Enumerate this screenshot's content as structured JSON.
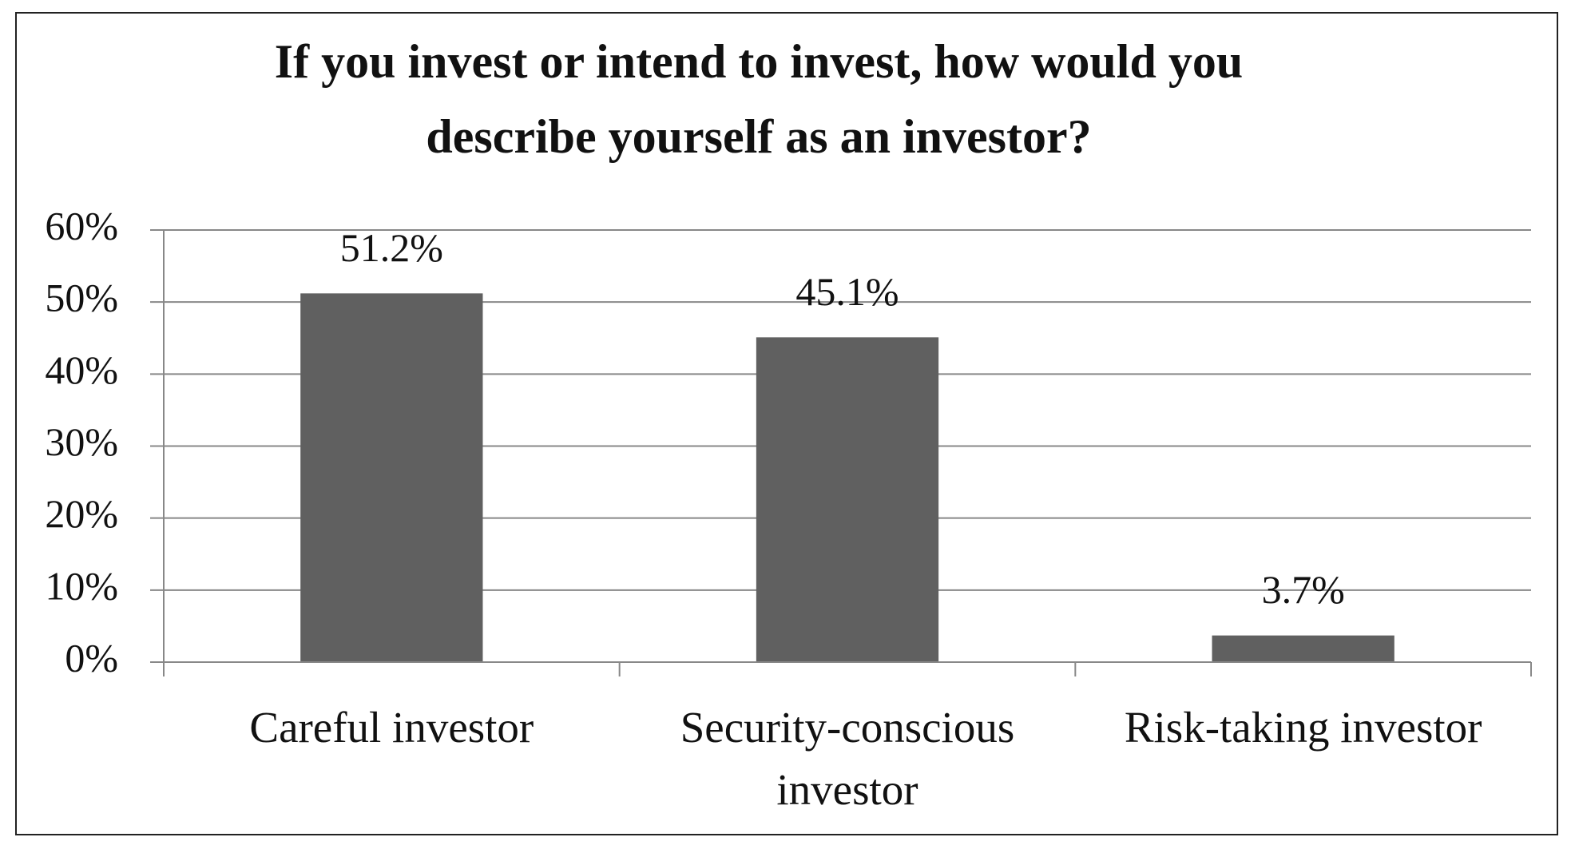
{
  "chart_data": {
    "type": "bar",
    "title": "If you invest or intend to invest, how would you describe yourself as an investor?",
    "categories": [
      "Careful investor",
      "Security-conscious investor",
      "Risk-taking investor"
    ],
    "values": [
      51.2,
      45.1,
      3.7
    ],
    "value_labels": [
      "51.2%",
      "45.1%",
      "3.7%"
    ],
    "color": "#606060",
    "ylim": [
      0,
      60
    ],
    "yticks": [
      {
        "value": 0,
        "label": "0%"
      },
      {
        "value": 10,
        "label": "10%"
      },
      {
        "value": 20,
        "label": "20%"
      },
      {
        "value": 30,
        "label": "30%"
      },
      {
        "value": 40,
        "label": "40%"
      },
      {
        "value": 50,
        "label": "50%"
      },
      {
        "value": 60,
        "label": "60%"
      }
    ],
    "grid": true
  }
}
